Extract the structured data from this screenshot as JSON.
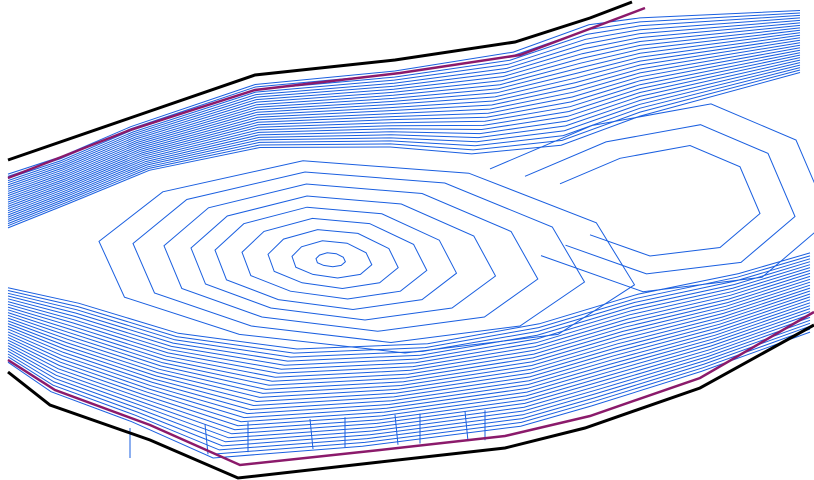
{
  "colors": {
    "background": "#ffffff",
    "contour_line": "#1a5fe0",
    "outer_boundary": "#000000",
    "inner_boundary": "#8b1a6b"
  },
  "icons": {
    "peak": "closed-contour-peak",
    "boundary": "site-boundary-polyline"
  }
}
